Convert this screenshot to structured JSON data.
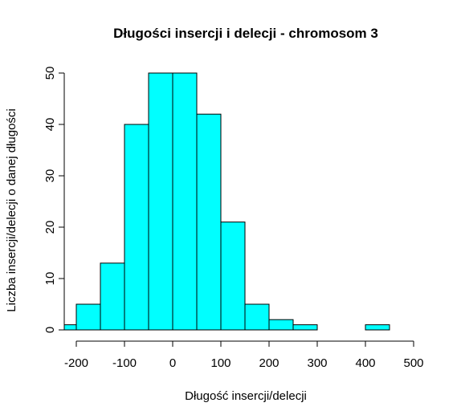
{
  "chart_data": {
    "type": "bar",
    "title": "Długości insercji i delecji - chromosom 3",
    "xlabel": "Długość insercji/delecji",
    "ylabel": "Liczba insercji/delecji o danej długości",
    "bin_edges": [
      -225,
      -200,
      -150,
      -100,
      -50,
      0,
      50,
      100,
      150,
      200,
      250,
      300,
      350,
      400,
      450
    ],
    "values": [
      1,
      5,
      13,
      40,
      50,
      50,
      42,
      21,
      5,
      2,
      1,
      0,
      0,
      1
    ],
    "xlim": [
      -225,
      500
    ],
    "ylim": [
      0,
      50
    ],
    "x_ticks": [
      -200,
      -100,
      0,
      100,
      200,
      300,
      400,
      500
    ],
    "x_tick_labels": [
      "-200",
      "-100",
      "0",
      "100",
      "200",
      "300",
      "400",
      "500"
    ],
    "y_ticks": [
      0,
      10,
      20,
      30,
      40,
      50
    ],
    "y_tick_labels": [
      "0",
      "10",
      "20",
      "30",
      "40",
      "50"
    ],
    "bar_color": "#00ffff",
    "grid": false
  }
}
